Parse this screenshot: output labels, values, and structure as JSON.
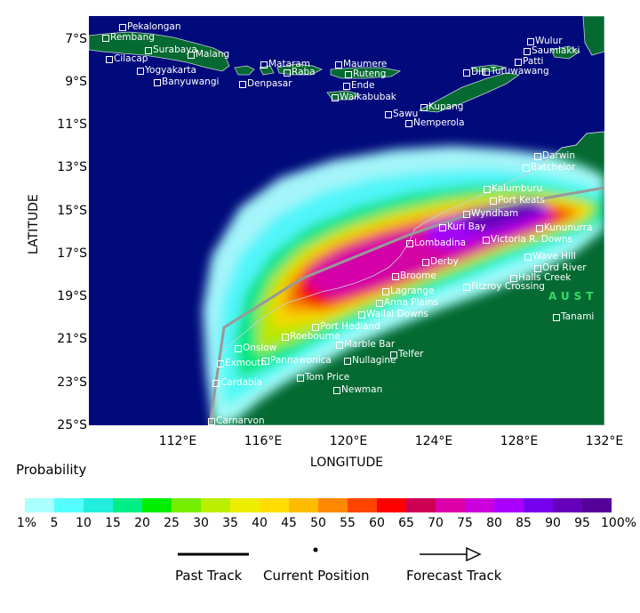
{
  "axes": {
    "ylabel": "LATITUDE",
    "xlabel": "LONGITUDE",
    "lat_ticks": [
      "7°S",
      "9°S",
      "11°S",
      "13°S",
      "15°S",
      "17°S",
      "19°S",
      "21°S",
      "23°S",
      "25°S"
    ],
    "lon_ticks": [
      "112°E",
      "116°E",
      "120°E",
      "124°E",
      "128°E",
      "132°E"
    ]
  },
  "colors": {
    "ocean": "#000a7a",
    "land": "#046a32",
    "coast": "#c8d0d8"
  },
  "map_region_label": "AUST",
  "towns": [
    "Pekalongan",
    "Rembang",
    "Cilacap",
    "Surabaya",
    "Malang",
    "Yogyakarta",
    "Banyuwangi",
    "Mataram",
    "Raba",
    "Denpasar",
    "Maumere",
    "Ruteng",
    "Ende",
    "Waikabubak",
    "Sawu",
    "Kupang",
    "Nemperola",
    "Dili",
    "Tutuwawang",
    "Patti",
    "Wulur",
    "Saumlakki",
    "Darwin",
    "Batchelor",
    "Kalumburu",
    "Port Keats",
    "Wyndham",
    "Kununurra",
    "Kuri Bay",
    "Lombadina",
    "Victoria R. Downs",
    "Derby",
    "Wave Hill",
    "Ord River",
    "Broome",
    "Halls Creek",
    "Fitzroy Crossing",
    "Lagrange",
    "Anna Plains",
    "Wallal Downs",
    "Port Hedland",
    "Roebourne",
    "Marble Bar",
    "Onslow",
    "Exmouth",
    "Pannawonica",
    "Nullagine",
    "Telfer",
    "Tom Price",
    "Cardabia",
    "Newman",
    "Tanami",
    "Carnarvon"
  ],
  "legend": {
    "title": "Probability",
    "labels": [
      "1%",
      "5",
      "10",
      "15",
      "20",
      "25",
      "30",
      "35",
      "40",
      "45",
      "50",
      "55",
      "60",
      "65",
      "70",
      "75",
      "80",
      "85",
      "90",
      "95",
      "100%"
    ],
    "colors": [
      "#aaffff",
      "#55ffff",
      "#22eedd",
      "#00ee88",
      "#00ee00",
      "#77ee00",
      "#bbee00",
      "#eeee00",
      "#ffdd00",
      "#ffbb00",
      "#ff8800",
      "#ff4400",
      "#ff0000",
      "#cc0055",
      "#dd00aa",
      "#cc00dd",
      "#aa00ff",
      "#7700ee",
      "#6600bb",
      "#550099"
    ]
  },
  "track_key": {
    "past": "Past Track",
    "current": "Current Position",
    "forecast": "Forecast Track"
  },
  "forecast_track_points": [
    [
      131.8,
      -14.8
    ],
    [
      128.5,
      -15.5
    ],
    [
      125,
      -16.3
    ],
    [
      121.5,
      -17.5
    ],
    [
      118,
      -18.3
    ],
    [
      114.2,
      -20.3
    ],
    [
      113.6,
      -24.5
    ]
  ]
}
